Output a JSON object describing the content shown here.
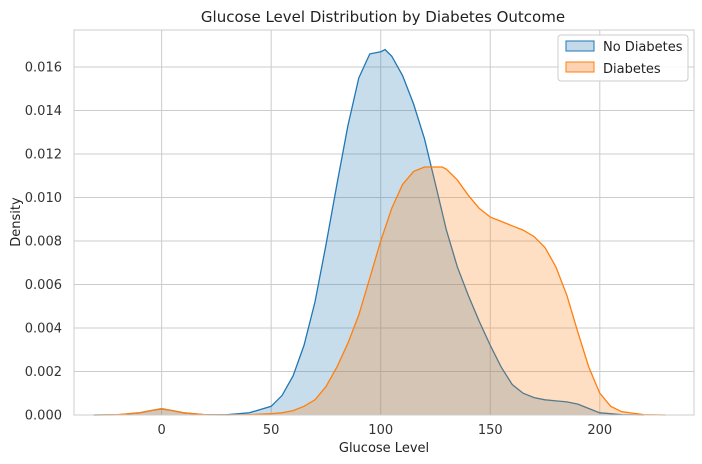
{
  "chart_data": {
    "type": "area",
    "title": "Glucose Level Distribution by Diabetes Outcome",
    "xlabel": "Glucose Level",
    "ylabel": "Density",
    "xlim": [
      -40,
      243
    ],
    "ylim": [
      0,
      0.0177
    ],
    "x_ticks": [
      0,
      50,
      100,
      150,
      200
    ],
    "x_tick_labels": [
      "0",
      "50",
      "100",
      "150",
      "200"
    ],
    "y_ticks": [
      0,
      0.002,
      0.004,
      0.006,
      0.008,
      0.01,
      0.012,
      0.014,
      0.016
    ],
    "y_tick_labels": [
      "0.000",
      "0.002",
      "0.004",
      "0.006",
      "0.008",
      "0.010",
      "0.012",
      "0.014",
      "0.016"
    ],
    "grid": true,
    "legend_position": "top-right",
    "series": [
      {
        "name": "No Diabetes",
        "color": "#1f77b4",
        "fill": "#c4d9ea",
        "x": [
          -31,
          -20,
          -10,
          -5,
          0,
          5,
          10,
          20,
          30,
          40,
          50,
          55,
          60,
          65,
          70,
          75,
          80,
          85,
          90,
          95,
          100,
          102,
          105,
          110,
          115,
          120,
          125,
          130,
          135,
          140,
          145,
          150,
          155,
          160,
          165,
          170,
          175,
          180,
          185,
          190,
          195,
          200,
          210,
          220
        ],
        "y": [
          0,
          1e-05,
          0.0001,
          0.0002,
          0.00028,
          0.0002,
          0.0001,
          1e-05,
          2e-05,
          0.0001,
          0.0004,
          0.0009,
          0.0018,
          0.0032,
          0.0052,
          0.0078,
          0.0106,
          0.0133,
          0.0155,
          0.0166,
          0.0167,
          0.0168,
          0.0165,
          0.0156,
          0.0143,
          0.0127,
          0.0106,
          0.0085,
          0.0068,
          0.0055,
          0.0043,
          0.0032,
          0.0022,
          0.0014,
          0.001,
          0.0008,
          0.0007,
          0.00065,
          0.0006,
          0.0005,
          0.0003,
          0.0001,
          2e-05,
          0
        ]
      },
      {
        "name": "Diabetes",
        "color": "#ff7f0e",
        "fill": "#fdd3b3",
        "x": [
          -31,
          -20,
          -10,
          -5,
          0,
          5,
          10,
          20,
          30,
          40,
          50,
          55,
          60,
          65,
          70,
          75,
          80,
          85,
          90,
          95,
          100,
          105,
          110,
          115,
          120,
          125,
          128,
          130,
          135,
          140,
          145,
          150,
          155,
          160,
          165,
          170,
          175,
          180,
          185,
          190,
          195,
          200,
          205,
          210,
          220,
          230
        ],
        "y": [
          0,
          2e-05,
          0.0001,
          0.0002,
          0.0003,
          0.0002,
          0.0001,
          1e-05,
          0,
          2e-05,
          6e-05,
          0.0001,
          0.0002,
          0.0004,
          0.0007,
          0.0013,
          0.0022,
          0.0033,
          0.0046,
          0.0063,
          0.008,
          0.0095,
          0.0106,
          0.0112,
          0.0114,
          0.0114,
          0.0114,
          0.0113,
          0.0108,
          0.0101,
          0.0095,
          0.0091,
          0.0089,
          0.0087,
          0.0085,
          0.0082,
          0.0077,
          0.0068,
          0.0055,
          0.0038,
          0.0022,
          0.001,
          0.0004,
          0.00015,
          2e-05,
          0
        ]
      }
    ]
  }
}
